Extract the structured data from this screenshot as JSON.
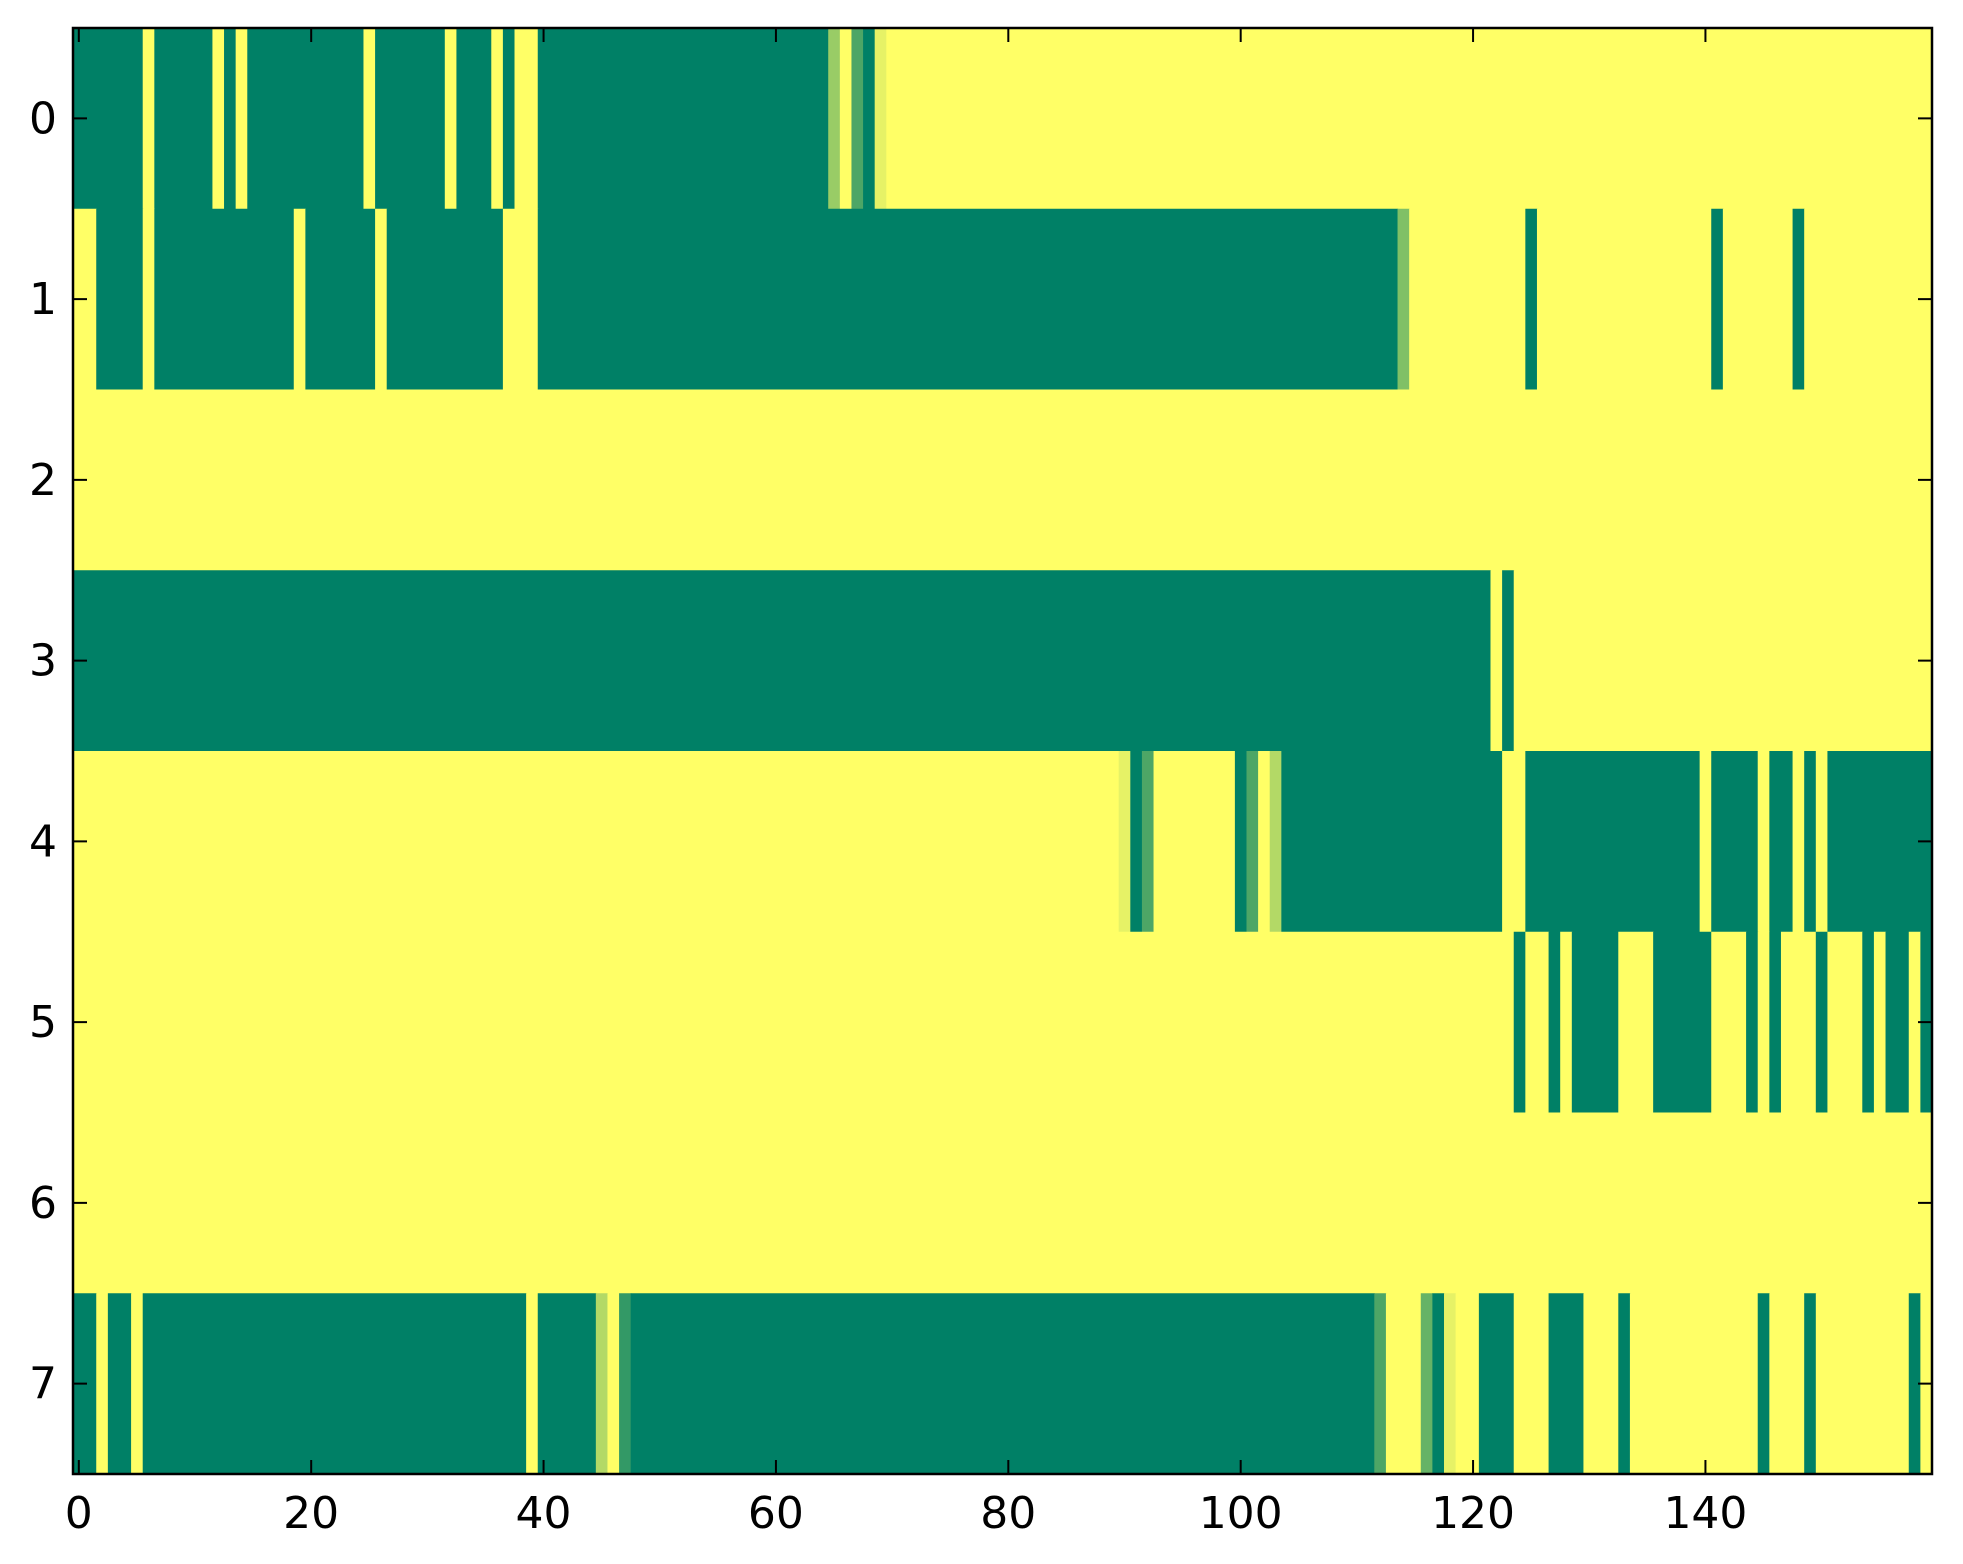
{
  "chart_data": {
    "type": "heatmap",
    "title": "",
    "xlabel": "",
    "ylabel": "",
    "n_cols": 160,
    "n_rows": 8,
    "xlim": [
      -0.5,
      159.5
    ],
    "ylim": [
      7.5,
      -0.5
    ],
    "x_ticks": [
      0,
      20,
      40,
      60,
      80,
      100,
      120,
      140
    ],
    "y_ticks": [
      0,
      1,
      2,
      3,
      4,
      5,
      6,
      7
    ],
    "colorscale": "summer",
    "colors": {
      "low": "#008066",
      "high": "#ffff66",
      "mid": "#80c066"
    },
    "grid": false,
    "legend": "none",
    "note_values": "each row lists runs of [start_col, end_col, value]; value 0 = dark green, 1 = yellow, fractions are intermediate shades",
    "rows": [
      [
        [
          0,
          5,
          0
        ],
        [
          6,
          6,
          1
        ],
        [
          7,
          11,
          0
        ],
        [
          12,
          12,
          1
        ],
        [
          13,
          13,
          0
        ],
        [
          14,
          14,
          1
        ],
        [
          15,
          24,
          0
        ],
        [
          25,
          25,
          1
        ],
        [
          26,
          31,
          0
        ],
        [
          32,
          32,
          1
        ],
        [
          33,
          35,
          0
        ],
        [
          36,
          36,
          1
        ],
        [
          37,
          37,
          0
        ],
        [
          38,
          39,
          1
        ],
        [
          40,
          64,
          0
        ],
        [
          65,
          65,
          0.6
        ],
        [
          66,
          66,
          1
        ],
        [
          67,
          67,
          0.3
        ],
        [
          68,
          68,
          0
        ],
        [
          69,
          69,
          0.9
        ],
        [
          70,
          159,
          1
        ]
      ],
      [
        [
          0,
          1,
          1
        ],
        [
          2,
          5,
          0
        ],
        [
          6,
          6,
          1
        ],
        [
          7,
          18,
          0
        ],
        [
          19,
          19,
          1
        ],
        [
          20,
          25,
          0
        ],
        [
          26,
          26,
          1
        ],
        [
          27,
          36,
          0
        ],
        [
          37,
          39,
          1
        ],
        [
          40,
          113,
          0
        ],
        [
          114,
          114,
          0.5
        ],
        [
          115,
          124,
          1
        ],
        [
          125,
          125,
          0
        ],
        [
          126,
          140,
          1
        ],
        [
          141,
          141,
          0
        ],
        [
          142,
          147,
          1
        ],
        [
          148,
          148,
          0
        ],
        [
          149,
          159,
          1
        ]
      ],
      [
        [
          0,
          159,
          1
        ]
      ],
      [
        [
          0,
          121,
          0
        ],
        [
          122,
          122,
          1
        ],
        [
          123,
          123,
          0
        ],
        [
          124,
          159,
          1
        ]
      ],
      [
        [
          0,
          89,
          1
        ],
        [
          90,
          90,
          0.9
        ],
        [
          91,
          91,
          0
        ],
        [
          92,
          92,
          0.3
        ],
        [
          93,
          99,
          1
        ],
        [
          100,
          100,
          0
        ],
        [
          101,
          101,
          0.3
        ],
        [
          102,
          102,
          1
        ],
        [
          103,
          103,
          0.7
        ],
        [
          104,
          122,
          0
        ],
        [
          123,
          124,
          1
        ],
        [
          125,
          139,
          0
        ],
        [
          140,
          140,
          1
        ],
        [
          141,
          144,
          0
        ],
        [
          145,
          145,
          1
        ],
        [
          146,
          147,
          0
        ],
        [
          148,
          148,
          1
        ],
        [
          149,
          149,
          0
        ],
        [
          150,
          150,
          1
        ],
        [
          151,
          159,
          0
        ]
      ],
      [
        [
          0,
          123,
          1
        ],
        [
          124,
          124,
          0
        ],
        [
          125,
          126,
          1
        ],
        [
          127,
          127,
          0
        ],
        [
          128,
          128,
          1
        ],
        [
          129,
          132,
          0
        ],
        [
          133,
          135,
          1
        ],
        [
          136,
          140,
          0
        ],
        [
          141,
          143,
          1
        ],
        [
          144,
          144,
          0
        ],
        [
          145,
          145,
          1
        ],
        [
          146,
          146,
          0
        ],
        [
          147,
          149,
          1
        ],
        [
          150,
          150,
          0
        ],
        [
          151,
          153,
          1
        ],
        [
          154,
          154,
          0
        ],
        [
          155,
          155,
          1
        ],
        [
          156,
          157,
          0
        ],
        [
          158,
          158,
          1
        ],
        [
          159,
          159,
          0
        ]
      ],
      [
        [
          0,
          159,
          1
        ]
      ],
      [
        [
          0,
          1,
          0
        ],
        [
          2,
          2,
          1
        ],
        [
          3,
          4,
          0
        ],
        [
          5,
          5,
          1
        ],
        [
          6,
          38,
          0
        ],
        [
          39,
          39,
          1
        ],
        [
          40,
          44,
          0
        ],
        [
          45,
          45,
          0.7
        ],
        [
          46,
          46,
          1
        ],
        [
          47,
          47,
          0.2
        ],
        [
          48,
          111,
          0
        ],
        [
          112,
          112,
          0.3
        ],
        [
          113,
          115,
          1
        ],
        [
          116,
          116,
          0.4
        ],
        [
          117,
          117,
          0
        ],
        [
          118,
          118,
          0.9
        ],
        [
          119,
          120,
          1
        ],
        [
          121,
          123,
          0
        ],
        [
          124,
          126,
          1
        ],
        [
          127,
          129,
          0
        ],
        [
          130,
          132,
          1
        ],
        [
          133,
          133,
          0
        ],
        [
          134,
          144,
          1
        ],
        [
          145,
          145,
          0
        ],
        [
          146,
          148,
          1
        ],
        [
          149,
          149,
          0
        ],
        [
          150,
          157,
          1
        ],
        [
          158,
          158,
          0
        ],
        [
          159,
          159,
          1
        ]
      ]
    ]
  }
}
